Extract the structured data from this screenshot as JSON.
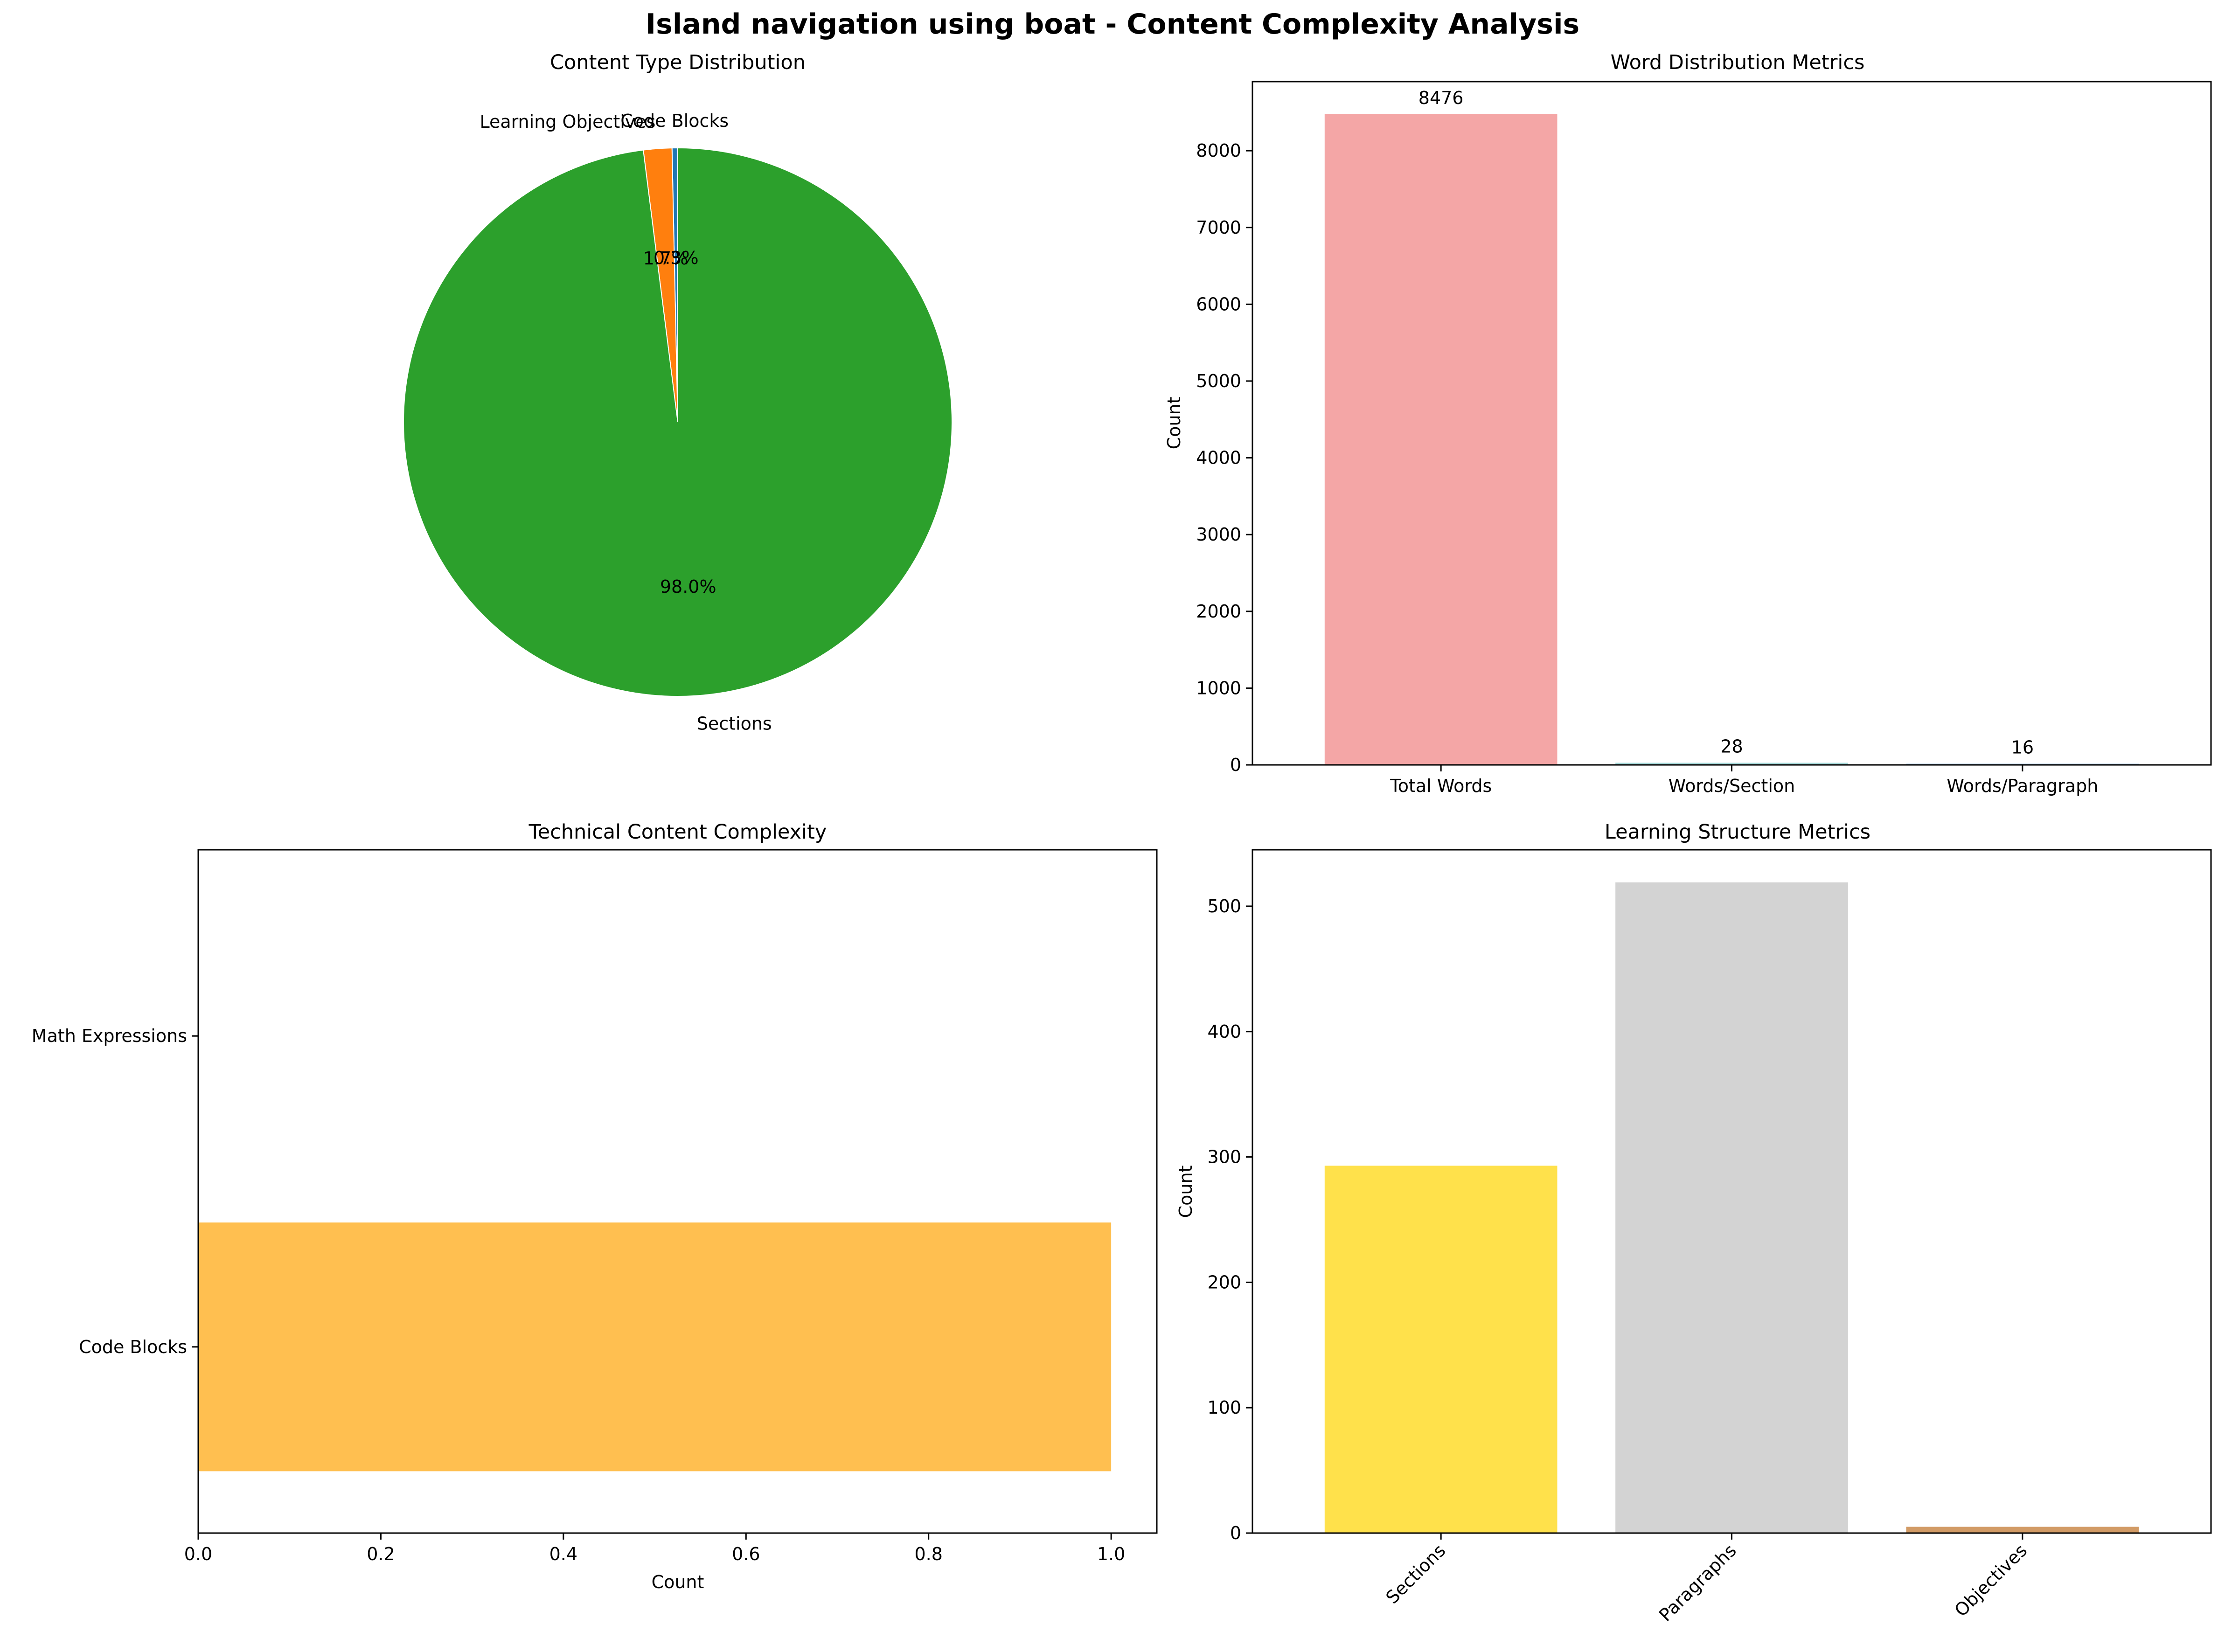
{
  "figure": {
    "title": "Island navigation using boat - Content Complexity Analysis"
  },
  "chart_data": [
    {
      "type": "pie",
      "title": "Content Type Distribution",
      "labels": [
        "Code Blocks",
        "Learning Objectives",
        "Sections"
      ],
      "values": [
        1,
        5,
        293
      ],
      "autopct_labels": [
        "0.3%",
        "1.7%",
        "98.0%"
      ],
      "colors": [
        "#1f77b4",
        "#ff7f0e",
        "#2ca02c"
      ]
    },
    {
      "type": "bar",
      "title": "Word Distribution Metrics",
      "categories": [
        "Total Words",
        "Words/Section",
        "Words/Paragraph"
      ],
      "values": [
        8476,
        28,
        16
      ],
      "value_labels": [
        "8476",
        "28",
        "16"
      ],
      "xlabel": "",
      "ylabel": "Count",
      "ylim": [
        0,
        8900
      ],
      "yticks": [
        0,
        1000,
        2000,
        3000,
        4000,
        5000,
        6000,
        7000,
        8000
      ],
      "colors": [
        "#f4a6a6",
        "#a6d8d8",
        "#a6c8e8"
      ]
    },
    {
      "type": "bar",
      "orientation": "horizontal",
      "title": "Technical Content Complexity",
      "categories": [
        "Code Blocks",
        "Math Expressions"
      ],
      "values": [
        1,
        0
      ],
      "xlabel": "Count",
      "ylabel": "",
      "xlim": [
        0,
        1.05
      ],
      "xticks": [
        "0.0",
        "0.2",
        "0.4",
        "0.6",
        "0.8",
        "1.0"
      ],
      "colors": [
        "#ffbf50",
        "#ff9f50"
      ]
    },
    {
      "type": "bar",
      "title": "Learning Structure Metrics",
      "categories": [
        "Sections",
        "Paragraphs",
        "Objectives"
      ],
      "values": [
        293,
        519,
        5
      ],
      "xlabel": "",
      "ylabel": "Count",
      "ylim": [
        0,
        545
      ],
      "yticks": [
        0,
        100,
        200,
        300,
        400,
        500
      ],
      "colors": [
        "#ffe14b",
        "#d3d3d3",
        "#d29b66"
      ]
    }
  ]
}
